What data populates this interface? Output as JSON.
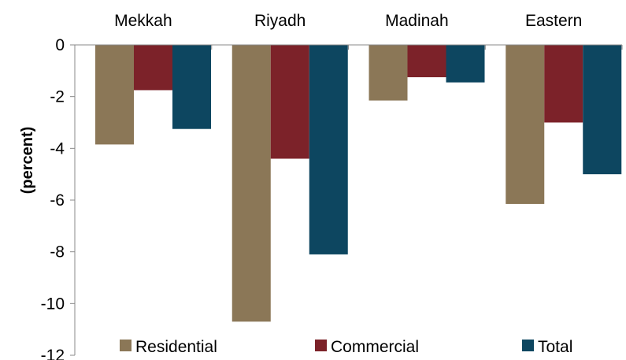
{
  "chart_data": {
    "type": "bar",
    "categories": [
      "Mekkah",
      "Riyadh",
      "Madinah",
      "Eastern"
    ],
    "series": [
      {
        "name": "Residential",
        "values": [
          -3.85,
          -10.7,
          -2.15,
          -6.15
        ]
      },
      {
        "name": "Commercial",
        "values": [
          -1.75,
          -4.4,
          -1.25,
          -3.0
        ]
      },
      {
        "name": "Total",
        "values": [
          -3.25,
          -8.1,
          -1.45,
          -5.0
        ]
      }
    ],
    "colors": [
      "#8b7757",
      "#7c2229",
      "#0d4660"
    ],
    "ylabel": "(percent)",
    "ylim": [
      -12,
      0
    ],
    "yticks": [
      "0",
      "-2",
      "-4",
      "-6",
      "-8",
      "-10",
      "-12"
    ],
    "category_axis_position": "top",
    "legend_position": "bottom",
    "grid": false
  }
}
